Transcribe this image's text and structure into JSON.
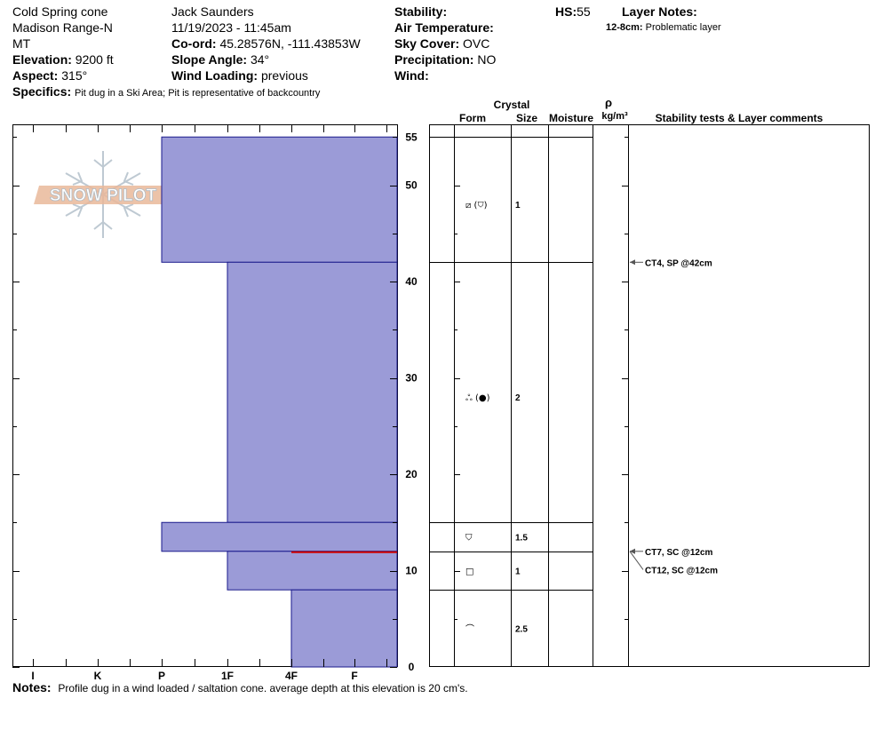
{
  "header": {
    "location": "Cold Spring cone",
    "range": "Madison Range-N",
    "state": "MT",
    "elevation_label": "Elevation:",
    "elevation": "9200 ft",
    "aspect_label": "Aspect:",
    "aspect": "315°",
    "specifics_label": "Specifics:",
    "specifics": "Pit dug in a Ski Area; Pit is representative of backcountry",
    "observer": "Jack Saunders",
    "datetime": "11/19/2023 - 11:45am",
    "coord_label": "Co-ord:",
    "coord": "45.28576N, -111.43853W",
    "slope_label": "Slope Angle:",
    "slope": "34°",
    "wind_loading_label": "Wind Loading:",
    "wind_loading": "previous",
    "stability_label": "Stability:",
    "air_temp_label": "Air Temperature:",
    "sky_cover_label": "Sky Cover:",
    "sky_cover": "OVC",
    "precip_label": "Precipitation:",
    "precip": "NO",
    "wind_label": "Wind:",
    "hs_label": "HS:",
    "hs": "55",
    "layer_notes_label": "Layer Notes:",
    "layer_note_depth": "12-8cm:",
    "layer_note_text": "Problematic layer"
  },
  "logo": {
    "text": "SNOW PILOT"
  },
  "notes": {
    "label": "Notes:",
    "text": "Profile dug in a wind loaded / saltation cone. average depth at this elevation is 20 cm's."
  },
  "colors": {
    "fill": "#9b9bd7",
    "outline": "#1a1a8c",
    "red_line": "#cc0000",
    "arrow": "#555555"
  },
  "chart_data": {
    "type": "snow_profile",
    "hardness_scale": [
      "I",
      "K",
      "P",
      "1F",
      "4F",
      "F"
    ],
    "depth_ticks": [
      0,
      10,
      20,
      30,
      40,
      50,
      55
    ],
    "depth_range_cm": [
      0,
      55
    ],
    "hardness_layers": [
      {
        "top": 55,
        "bottom": 42,
        "hardness": "P"
      },
      {
        "top": 42,
        "bottom": 15,
        "hardness": "1F"
      },
      {
        "top": 15,
        "bottom": 12,
        "hardness": "P"
      },
      {
        "top": 12,
        "bottom": 8,
        "hardness": "1F"
      },
      {
        "top": 8,
        "bottom": 0,
        "hardness": "4F"
      }
    ],
    "red_line_depth": 12,
    "columns": {
      "crystal": "Crystal",
      "form": "Form",
      "size": "Size",
      "moisture": "Moisture",
      "rho": "ρ",
      "density_unit": "kg/m³",
      "comments": "Stability tests & Layer comments"
    },
    "table_boundaries": [
      55,
      42,
      15,
      12,
      8,
      0
    ],
    "crystal_rows": [
      {
        "depth": 48,
        "form": "⧄ (⛉)",
        "size": "1"
      },
      {
        "depth": 28,
        "form": "ஃ (●)",
        "size": "2"
      },
      {
        "depth": 13.5,
        "form": "⛉",
        "size": "1.5"
      },
      {
        "depth": 10,
        "form": "□",
        "size": "1"
      },
      {
        "depth": 4,
        "form": "⌒",
        "size": "2.5"
      }
    ],
    "stability_tests": [
      {
        "depth": 42,
        "label": "CT4, SP @42cm",
        "label_depth": 42
      },
      {
        "depth": 12,
        "label": "CT7, SC @12cm",
        "label_depth": 12
      },
      {
        "depth": 12,
        "label": "CT12, SC @12cm",
        "label_depth": 10.1
      }
    ]
  }
}
